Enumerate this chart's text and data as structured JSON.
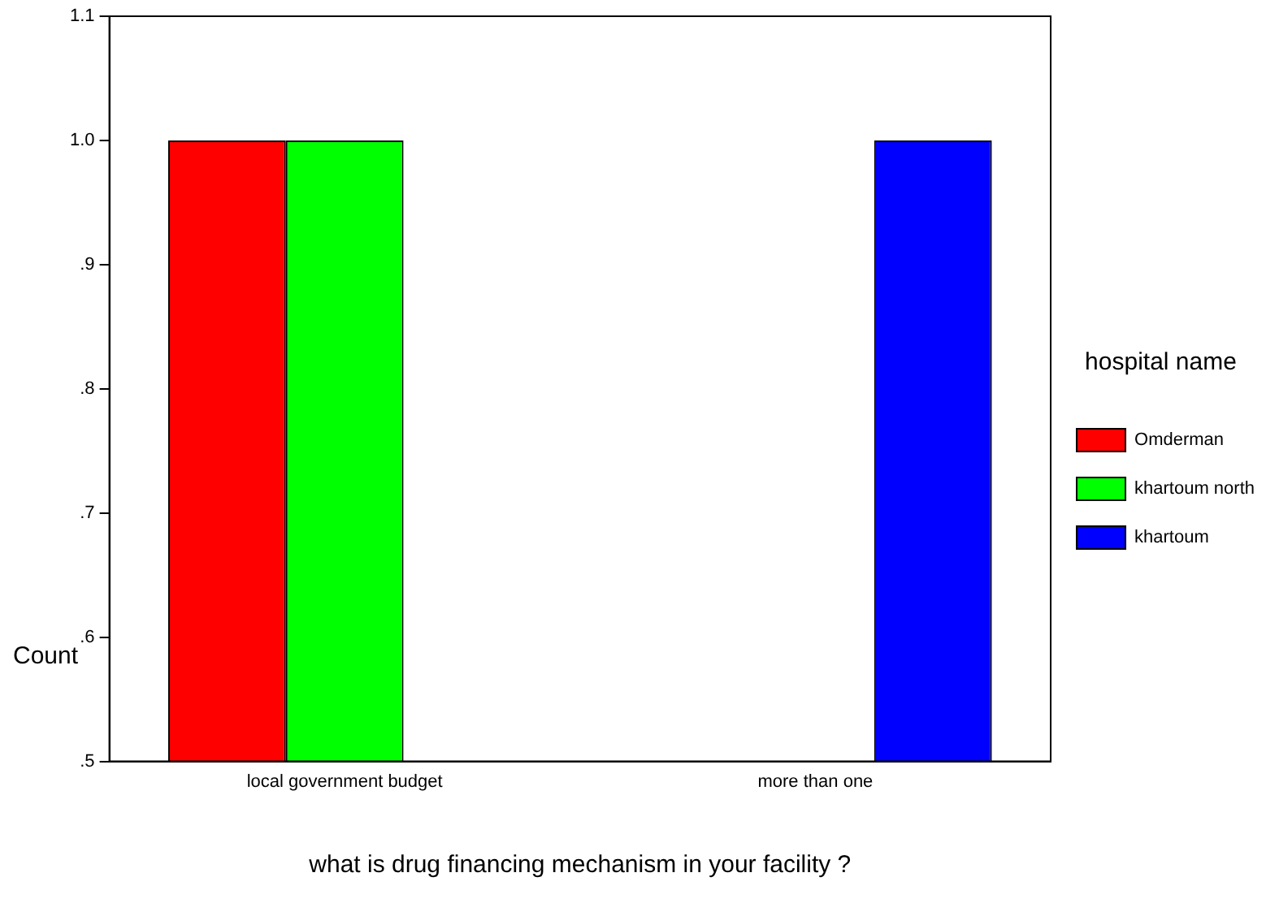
{
  "chart_data": {
    "type": "bar",
    "xlabel": "what is drug financing mechanism in your facility ?",
    "ylabel": "Count",
    "legend_title": "hospital name",
    "categories": [
      "local government budget",
      "more than one"
    ],
    "series": [
      {
        "name": "Omderman",
        "color": "#ff0000",
        "values": [
          1.0,
          null
        ]
      },
      {
        "name": "khartoum north",
        "color": "#00ff00",
        "values": [
          1.0,
          null
        ]
      },
      {
        "name": "khartoum",
        "color": "#0000ff",
        "values": [
          null,
          1.0
        ]
      }
    ],
    "ylim": [
      0.5,
      1.1
    ],
    "yticks": [
      {
        "value": 0.5,
        "label": ".5"
      },
      {
        "value": 0.6,
        "label": ".6"
      },
      {
        "value": 0.7,
        "label": ".7"
      },
      {
        "value": 0.8,
        "label": ".8"
      },
      {
        "value": 0.9,
        "label": ".9"
      },
      {
        "value": 1.0,
        "label": "1.0"
      },
      {
        "value": 1.1,
        "label": "1.1"
      }
    ],
    "grid": false,
    "legend": "right"
  }
}
